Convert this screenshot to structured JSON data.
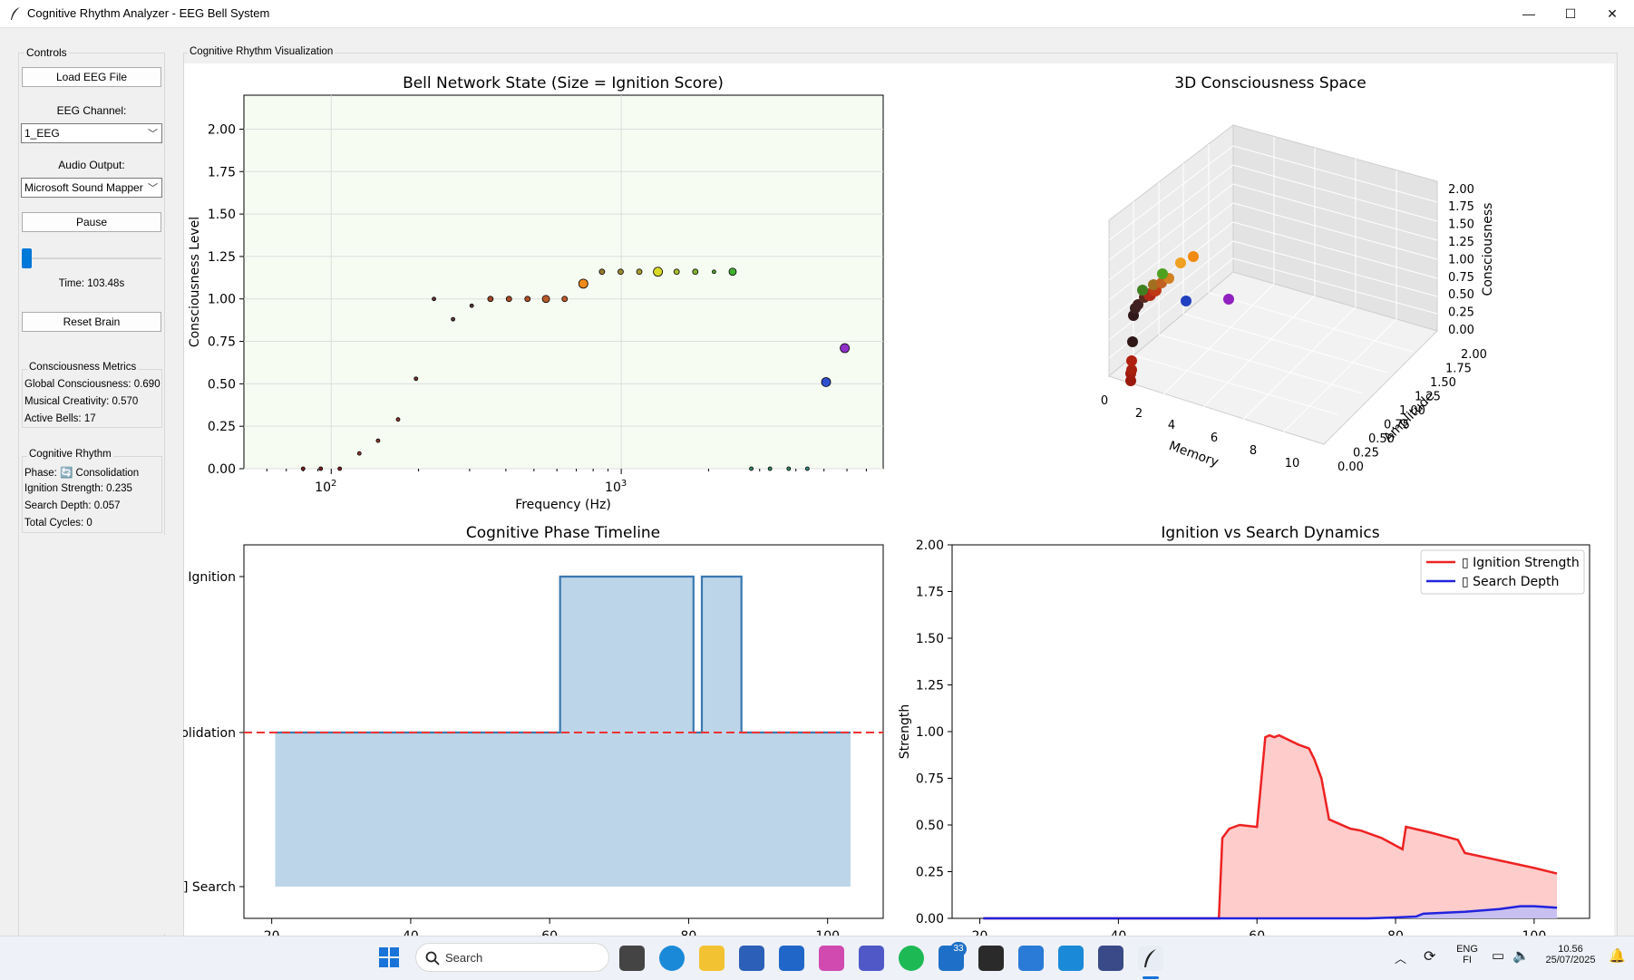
{
  "window": {
    "title": "Cognitive Rhythm Analyzer - EEG Bell System",
    "min": "—",
    "max": "☐",
    "close": "✕"
  },
  "controls": {
    "group_label": "Controls",
    "load_button": "Load EEG File",
    "channel_label": "EEG Channel:",
    "channel_value": "1_EEG",
    "audio_label": "Audio Output:",
    "audio_value": "Microsoft Sound Mapper",
    "pause_button": "Pause",
    "slider_value": 0.0,
    "time_label": "Time: 103.48s",
    "reset_button": "Reset Brain"
  },
  "consciousness_metrics": {
    "label": "Consciousness Metrics",
    "global": "Global Consciousness: 0.690",
    "creativity": "Musical Creativity: 0.570",
    "active_bells": "Active Bells: 17"
  },
  "cognitive_rhythm": {
    "label": "Cognitive Rhythm",
    "phase": "Phase: 🔄 Consolidation",
    "ignition": "Ignition Strength: 0.235",
    "search": "Search Depth: 0.057",
    "cycles": "Total Cycles: 0"
  },
  "viz_label": "Cognitive Rhythm Visualization",
  "taskbar": {
    "search_placeholder": "Search",
    "lang": "ENG",
    "region": "FI",
    "time": "10.56",
    "date": "25/07/2025",
    "badge": "33"
  },
  "chart_data": [
    {
      "type": "scatter",
      "title": "Bell Network State (Size = Ignition Score)",
      "xlabel": "Frequency (Hz)",
      "ylabel": "Consciousness Level",
      "xscale": "log",
      "xlim": [
        50,
        8000
      ],
      "ylim": [
        0,
        2.2
      ],
      "yticks": [
        0.0,
        0.25,
        0.5,
        0.75,
        1.0,
        1.25,
        1.5,
        1.75,
        2.0
      ],
      "xtick_labels": [
        "10",
        "10"
      ],
      "xtick_exponents": [
        "2",
        "3"
      ],
      "background": "#f6fcf2",
      "grid": true,
      "points": [
        {
          "x": 80,
          "y": 0.0,
          "s": 2,
          "c": "#7a2020"
        },
        {
          "x": 92,
          "y": 0.0,
          "s": 2,
          "c": "#7a2020"
        },
        {
          "x": 107,
          "y": 0.0,
          "s": 2,
          "c": "#7a2020"
        },
        {
          "x": 125,
          "y": 0.09,
          "s": 2,
          "c": "#8a3828"
        },
        {
          "x": 145,
          "y": 0.165,
          "s": 2,
          "c": "#8a3828"
        },
        {
          "x": 170,
          "y": 0.29,
          "s": 2,
          "c": "#8a3828"
        },
        {
          "x": 196,
          "y": 0.53,
          "s": 2,
          "c": "#6a3528"
        },
        {
          "x": 226,
          "y": 1.0,
          "s": 2,
          "c": "#5a3030"
        },
        {
          "x": 263,
          "y": 0.88,
          "s": 2,
          "c": "#5a3a30"
        },
        {
          "x": 305,
          "y": 0.96,
          "s": 2,
          "c": "#5a3a30"
        },
        {
          "x": 354,
          "y": 1.0,
          "s": 3,
          "c": "#a04a28"
        },
        {
          "x": 410,
          "y": 1.0,
          "s": 3,
          "c": "#a84a28"
        },
        {
          "x": 475,
          "y": 1.0,
          "s": 3,
          "c": "#b04e28"
        },
        {
          "x": 550,
          "y": 1.0,
          "s": 4,
          "c": "#b85a2a"
        },
        {
          "x": 638,
          "y": 1.0,
          "s": 3,
          "c": "#c05a2a"
        },
        {
          "x": 740,
          "y": 1.09,
          "s": 5,
          "c": "#f08a1a"
        },
        {
          "x": 858,
          "y": 1.16,
          "s": 3,
          "c": "#9a7a30"
        },
        {
          "x": 995,
          "y": 1.16,
          "s": 3,
          "c": "#9a8a30"
        },
        {
          "x": 1154,
          "y": 1.16,
          "s": 3,
          "c": "#aa9a30"
        },
        {
          "x": 1338,
          "y": 1.16,
          "s": 5,
          "c": "#d8d828"
        },
        {
          "x": 1552,
          "y": 1.16,
          "s": 3,
          "c": "#a8b830"
        },
        {
          "x": 1800,
          "y": 1.16,
          "s": 3,
          "c": "#80b030"
        },
        {
          "x": 2088,
          "y": 1.16,
          "s": 2,
          "c": "#50a030"
        },
        {
          "x": 2421,
          "y": 1.16,
          "s": 4,
          "c": "#40b030"
        },
        {
          "x": 2808,
          "y": 0.0,
          "s": 2,
          "c": "#308860"
        },
        {
          "x": 3257,
          "y": 0.0,
          "s": 2,
          "c": "#308860"
        },
        {
          "x": 3778,
          "y": 0.0,
          "s": 2,
          "c": "#308860"
        },
        {
          "x": 4382,
          "y": 0.0,
          "s": 2,
          "c": "#308880"
        },
        {
          "x": 5083,
          "y": 0.51,
          "s": 5,
          "c": "#3050d0"
        },
        {
          "x": 5896,
          "y": 0.71,
          "s": 5,
          "c": "#9030c8"
        }
      ]
    },
    {
      "type": "scatter3d",
      "title": "3D Consciousness Space",
      "xlabel": "Memory",
      "ylabel": "Amplitude",
      "zlabel": "Consciousness",
      "xticks": [
        "0",
        "2",
        "4",
        "6",
        "8",
        "10"
      ],
      "yticks": [
        "0.00",
        "0.25",
        "0.50",
        "0.75",
        "1.00",
        "1.25",
        "1.50",
        "1.75",
        "2.00"
      ],
      "zticks": [
        "0.00",
        "0.25",
        "0.50",
        "0.75",
        "1.00",
        "1.25",
        "1.50",
        "1.75",
        "2.00"
      ]
    },
    {
      "type": "area",
      "title": "Cognitive Phase Timeline",
      "xlim": [
        16,
        108
      ],
      "xticks": [
        20,
        40,
        60,
        80,
        100
      ],
      "ytick_labels": [
        "Ignition",
        "olidation",
        "] Search"
      ],
      "series": [
        {
          "x": [
            20.5,
            61.5,
            61.5,
            80.7,
            80.7,
            81.9,
            81.9,
            87.6,
            87.6,
            103.3
          ],
          "y": [
            1,
            1,
            2,
            2,
            1,
            1,
            2,
            2,
            1,
            1
          ]
        }
      ],
      "threshold": 1
    },
    {
      "type": "area",
      "title": "Ignition vs Search Dynamics",
      "ylabel": "Strength",
      "xlim": [
        16,
        108
      ],
      "ylim": [
        0,
        2.0
      ],
      "xticks": [
        20,
        40,
        60,
        80,
        100
      ],
      "yticks": [
        0.0,
        0.25,
        0.5,
        0.75,
        1.0,
        1.25,
        1.5,
        1.75,
        2.0
      ],
      "legend_position": "top-right",
      "series": [
        {
          "name": "▯ Ignition Strength",
          "color": "#ee2222",
          "x": [
            20.5,
            54.5,
            55.0,
            56.0,
            57.5,
            60.0,
            61.2,
            61.8,
            62.5,
            63.2,
            66.0,
            67.5,
            68.3,
            69.3,
            70.4,
            73.5,
            75.0,
            78.0,
            81.0,
            81.5,
            85.0,
            89.0,
            90.0,
            95.0,
            100.0,
            103.3
          ],
          "y": [
            0.0,
            0.0,
            0.43,
            0.48,
            0.5,
            0.49,
            0.97,
            0.98,
            0.97,
            0.98,
            0.93,
            0.91,
            0.85,
            0.75,
            0.53,
            0.48,
            0.47,
            0.43,
            0.37,
            0.49,
            0.46,
            0.42,
            0.35,
            0.31,
            0.27,
            0.24
          ]
        },
        {
          "name": "▯ Search Depth",
          "color": "#2222dd",
          "x": [
            20.5,
            76.0,
            80.0,
            83.0,
            84.0,
            90.0,
            95.0,
            98.0,
            100.0,
            103.3
          ],
          "y": [
            0.0,
            0.0,
            0.005,
            0.01,
            0.025,
            0.035,
            0.05,
            0.065,
            0.065,
            0.057
          ]
        }
      ]
    }
  ]
}
